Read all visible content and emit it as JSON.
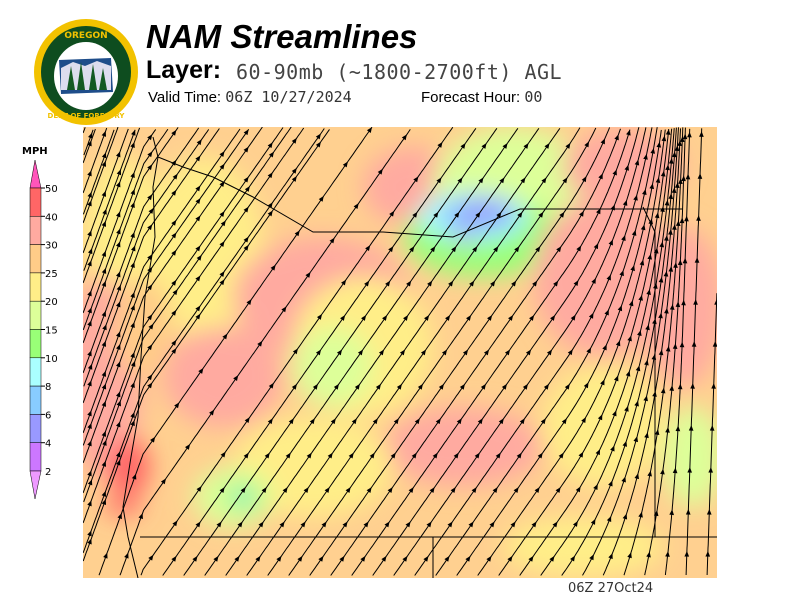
{
  "header": {
    "logo_text": "OREGON DEPARTMENT OF FORESTRY",
    "title": "NAM Streamlines",
    "layer_label": "Layer:",
    "layer_value": "60-90mb (~1800-2700ft) AGL",
    "valid_time_label": "Valid Time:",
    "valid_time_value": "06Z 10/27/2024",
    "forecast_hour_label": "Forecast Hour:",
    "forecast_hour_value": "00"
  },
  "legend": {
    "units": "MPH",
    "top_arrow_color": "#ff55bb",
    "bottom_arrow_color": "#ee99ff",
    "bins": [
      {
        "label": "50",
        "color": "#ff6666"
      },
      {
        "label": "40",
        "color": "#ffaaa0"
      },
      {
        "label": "30",
        "color": "#ffcc88"
      },
      {
        "label": "25",
        "color": "#ffee88"
      },
      {
        "label": "20",
        "color": "#ddff99"
      },
      {
        "label": "15",
        "color": "#99ff77"
      },
      {
        "label": "10",
        "color": "#aaffff"
      },
      {
        "label": "8",
        "color": "#88ccff"
      },
      {
        "label": "6",
        "color": "#9999ff"
      },
      {
        "label": "4",
        "color": "#cc77ff"
      }
    ],
    "bottom_label": "2"
  },
  "map": {
    "streamline_color": "#000000",
    "border_color": "#000000"
  },
  "footer": {
    "timestamp": "06Z 27Oct24"
  }
}
